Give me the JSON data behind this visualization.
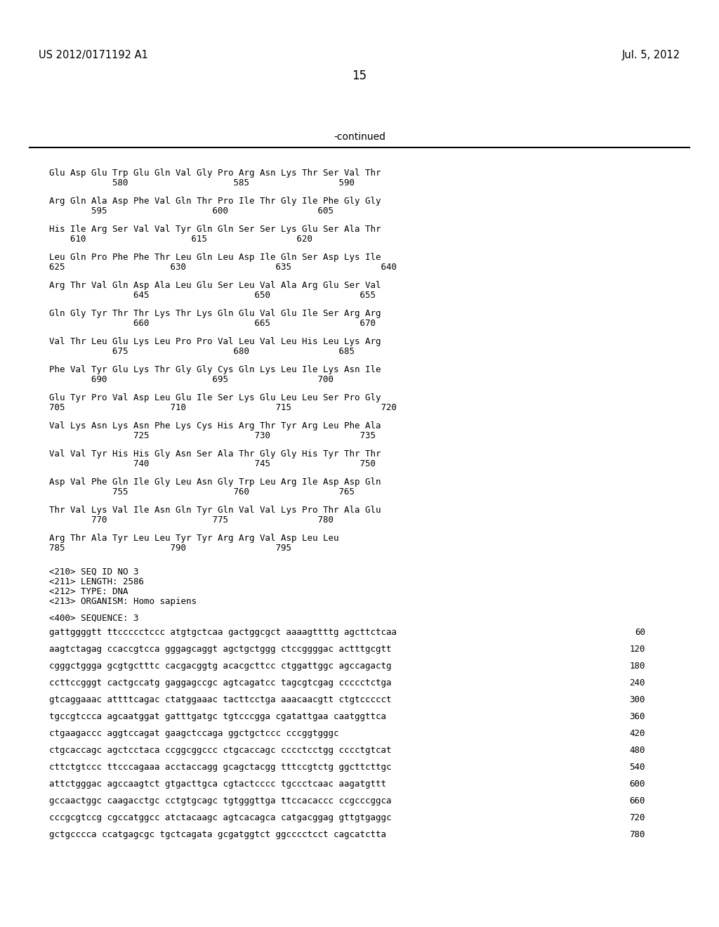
{
  "header_left": "US 2012/0171192 A1",
  "header_right": "Jul. 5, 2012",
  "page_number": "15",
  "continued_label": "-continued",
  "background_color": "#ffffff",
  "text_color": "#000000",
  "aa_lines": [
    {
      "seq": "Glu Asp Glu Trp Glu Gln Val Gly Pro Arg Asn Lys Thr Ser Val Thr",
      "nums": "            580                    585                 590"
    },
    {
      "seq": "Arg Gln Ala Asp Phe Val Gln Thr Pro Ile Thr Gly Ile Phe Gly Gly",
      "nums": "        595                    600                 605"
    },
    {
      "seq": "His Ile Arg Ser Val Val Tyr Gln Gln Ser Ser Lys Glu Ser Ala Thr",
      "nums": "    610                    615                 620"
    },
    {
      "seq": "Leu Gln Pro Phe Phe Thr Leu Gln Leu Asp Ile Gln Ser Asp Lys Ile",
      "nums": "625                    630                 635                 640"
    },
    {
      "seq": "Arg Thr Val Gln Asp Ala Leu Glu Ser Leu Val Ala Arg Glu Ser Val",
      "nums": "                645                    650                 655"
    },
    {
      "seq": "Gln Gly Tyr Thr Thr Lys Thr Lys Gln Glu Val Glu Ile Ser Arg Arg",
      "nums": "                660                    665                 670"
    },
    {
      "seq": "Val Thr Leu Glu Lys Leu Pro Pro Val Leu Val Leu His Leu Lys Arg",
      "nums": "            675                    680                 685"
    },
    {
      "seq": "Phe Val Tyr Glu Lys Thr Gly Gly Cys Gln Lys Leu Ile Lys Asn Ile",
      "nums": "        690                    695                 700"
    },
    {
      "seq": "Glu Tyr Pro Val Asp Leu Glu Ile Ser Lys Glu Leu Leu Ser Pro Gly",
      "nums": "705                    710                 715                 720"
    },
    {
      "seq": "Val Lys Asn Lys Asn Phe Lys Cys His Arg Thr Tyr Arg Leu Phe Ala",
      "nums": "                725                    730                 735"
    },
    {
      "seq": "Val Val Tyr His His Gly Asn Ser Ala Thr Gly Gly His Tyr Thr Thr",
      "nums": "                740                    745                 750"
    },
    {
      "seq": "Asp Val Phe Gln Ile Gly Leu Asn Gly Trp Leu Arg Ile Asp Asp Gln",
      "nums": "            755                    760                 765"
    },
    {
      "seq": "Thr Val Lys Val Ile Asn Gln Tyr Gln Val Val Lys Pro Thr Ala Glu",
      "nums": "        770                    775                 780"
    },
    {
      "seq": "Arg Thr Ala Tyr Leu Leu Tyr Tyr Arg Arg Val Asp Leu Leu",
      "nums": "785                    790                 795"
    }
  ],
  "seq_id_lines": [
    "<210> SEQ ID NO 3",
    "<211> LENGTH: 2586",
    "<212> TYPE: DNA",
    "<213> ORGANISM: Homo sapiens"
  ],
  "seq_label": "<400> SEQUENCE: 3",
  "dna_lines": [
    {
      "seq": "gattggggtt ttccccctccc atgtgctcaa gactggcgct aaaagttttg agcttctcaa",
      "num": "60"
    },
    {
      "seq": "aagtctagag ccaccgtcca gggagcaggt agctgctggg ctccggggac actttgcgtt",
      "num": "120"
    },
    {
      "seq": "cgggctggga gcgtgctttc cacgacggtg acacgcttcc ctggattggc agccagactg",
      "num": "180"
    },
    {
      "seq": "ccttccgggt cactgccatg gaggagccgc agtcagatcc tagcgtcgag ccccctctga",
      "num": "240"
    },
    {
      "seq": "gtcaggaaac attttcagac ctatggaaac tacttcctga aaacaacgtt ctgtccccct",
      "num": "300"
    },
    {
      "seq": "tgccgtccca agcaatggat gatttgatgc tgtcccgga cgatattgaa caatggttca",
      "num": "360"
    },
    {
      "seq": "ctgaagaccc aggtccagat gaagctccaga ggctgctccc cccggtgggc",
      "num": "420"
    },
    {
      "seq": "ctgcaccagc agctcctaca ccggcggccc ctgcaccagc cccctcctgg cccctgtcat",
      "num": "480"
    },
    {
      "seq": "cttctgtccc ttcccagaaa acctaccagg gcagctacgg tttccgtctg ggcttcttgc",
      "num": "540"
    },
    {
      "seq": "attctgggac agccaagtct gtgacttgca cgtactcccc tgccctcaac aagatgttt",
      "num": "600"
    },
    {
      "seq": "gccaactggc caagacctgc cctgtgcagc tgtgggttga ttccacaccc ccgcccggca",
      "num": "660"
    },
    {
      "seq": "cccgcgtccg cgccatggcc atctacaagc agtcacagca catgacggag gttgtgaggc",
      "num": "720"
    },
    {
      "seq": "gctgcccca ccatgagcgc tgctcagata gcgatggtct ggcccctcct cagcatctta",
      "num": "780"
    }
  ]
}
